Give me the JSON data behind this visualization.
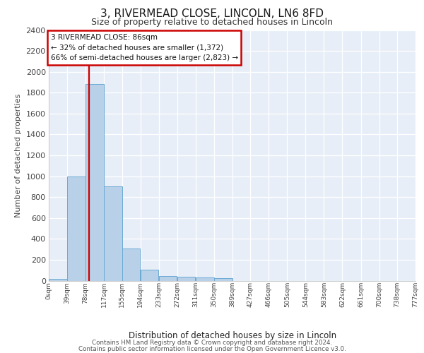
{
  "title": "3, RIVERMEAD CLOSE, LINCOLN, LN6 8FD",
  "subtitle": "Size of property relative to detached houses in Lincoln",
  "xlabel": "Distribution of detached houses by size in Lincoln",
  "ylabel": "Number of detached properties",
  "annotation_line1": "3 RIVERMEAD CLOSE: 86sqm",
  "annotation_line2": "← 32% of detached houses are smaller (1,372)",
  "annotation_line3": "66% of semi-detached houses are larger (2,823) →",
  "property_size_sqm": 86,
  "bin_edges": [
    0,
    39,
    78,
    117,
    155,
    194,
    233,
    272,
    311,
    350,
    389,
    427,
    466,
    505,
    544,
    583,
    622,
    661,
    700,
    738,
    777
  ],
  "bar_heights": [
    20,
    1000,
    1880,
    900,
    310,
    105,
    45,
    40,
    28,
    22,
    0,
    0,
    0,
    0,
    0,
    0,
    0,
    0,
    0,
    0
  ],
  "bar_color": "#b8d0e8",
  "bar_edgecolor": "#6aaad4",
  "red_line_color": "#cc0000",
  "annotation_box_edgecolor": "#cc0000",
  "annotation_box_facecolor": "#ffffff",
  "axes_bg_color": "#e8eef8",
  "grid_color": "#ffffff",
  "ylim": [
    0,
    2400
  ],
  "yticks": [
    0,
    200,
    400,
    600,
    800,
    1000,
    1200,
    1400,
    1600,
    1800,
    2000,
    2200,
    2400
  ],
  "title_fontsize": 11,
  "subtitle_fontsize": 9,
  "ylabel_fontsize": 8,
  "xlabel_fontsize": 8.5,
  "ytick_fontsize": 8,
  "xtick_fontsize": 6.5,
  "footer_line1": "Contains HM Land Registry data © Crown copyright and database right 2024.",
  "footer_line2": "Contains public sector information licensed under the Open Government Licence v3.0."
}
